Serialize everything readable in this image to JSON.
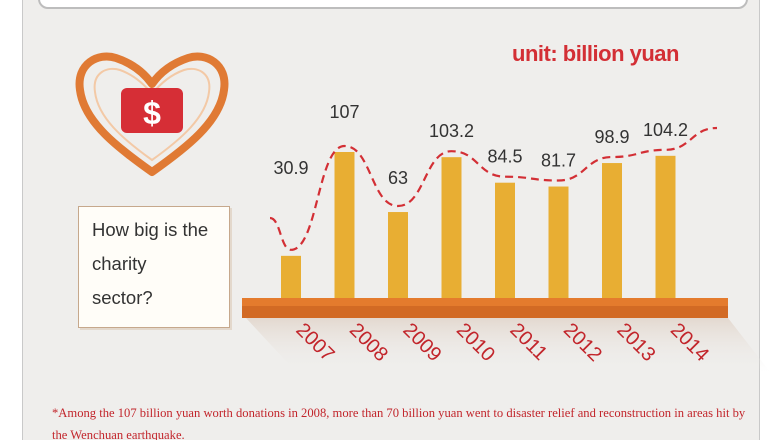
{
  "unit_label": "unit: billion yuan",
  "question": "How big is the charity sector?",
  "question_lines": [
    "How big is the",
    "charity",
    "sector?"
  ],
  "footnote": "*Among the 107 billion yuan worth donations in 2008, more than 70 billion yuan went to disaster relief and reconstruction in areas hit by the Wenchuan earthquake.",
  "icon": "heart-dollar-icon",
  "colors": {
    "bar": "#e8ae33",
    "base": "#e07a2e",
    "accent": "#d32f35",
    "heart": "#e07a34",
    "panel": "#efeeec"
  },
  "chart_data": {
    "type": "bar",
    "title": "",
    "categories": [
      "2007",
      "2008",
      "2009",
      "2010",
      "2011",
      "2012",
      "2013",
      "2014"
    ],
    "values": [
      30.9,
      107,
      63,
      103.2,
      84.5,
      81.7,
      98.9,
      104.2
    ],
    "data_labels": [
      "30.9",
      "107",
      "63",
      "103.2",
      "84.5",
      "81.7",
      "98.9",
      "104.2"
    ],
    "xlabel": "",
    "ylabel": "unit: billion yuan",
    "ylim": [
      0,
      107
    ],
    "trend_line": true,
    "grid": false
  }
}
